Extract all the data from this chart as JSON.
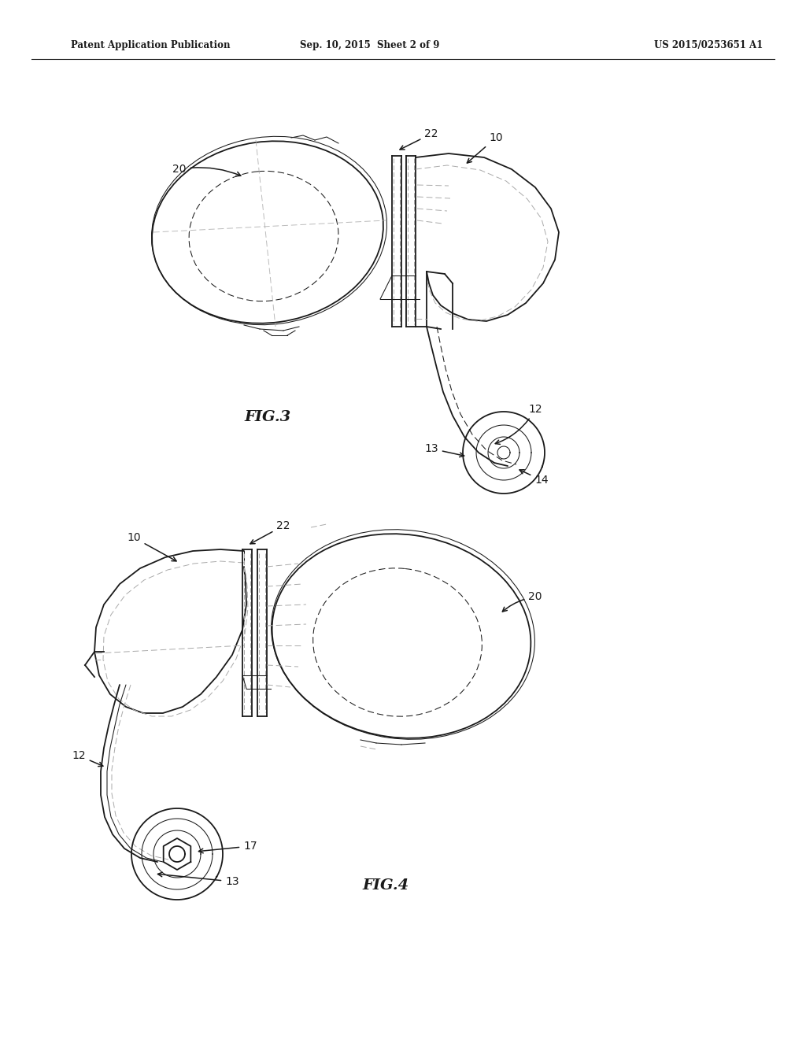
{
  "background_color": "#ffffff",
  "header_left": "Patent Application Publication",
  "header_center": "Sep. 10, 2015  Sheet 2 of 9",
  "header_right": "US 2015/0253651 A1",
  "fig3_label": "FIG.3",
  "fig4_label": "FIG.4",
  "line_color": "#1a1a1a",
  "dashed_color": "#aaaaaa",
  "label_color": "#000000",
  "lw_main": 1.3,
  "lw_thin": 0.75,
  "lw_dash": 0.7,
  "label_fontsize": 10
}
